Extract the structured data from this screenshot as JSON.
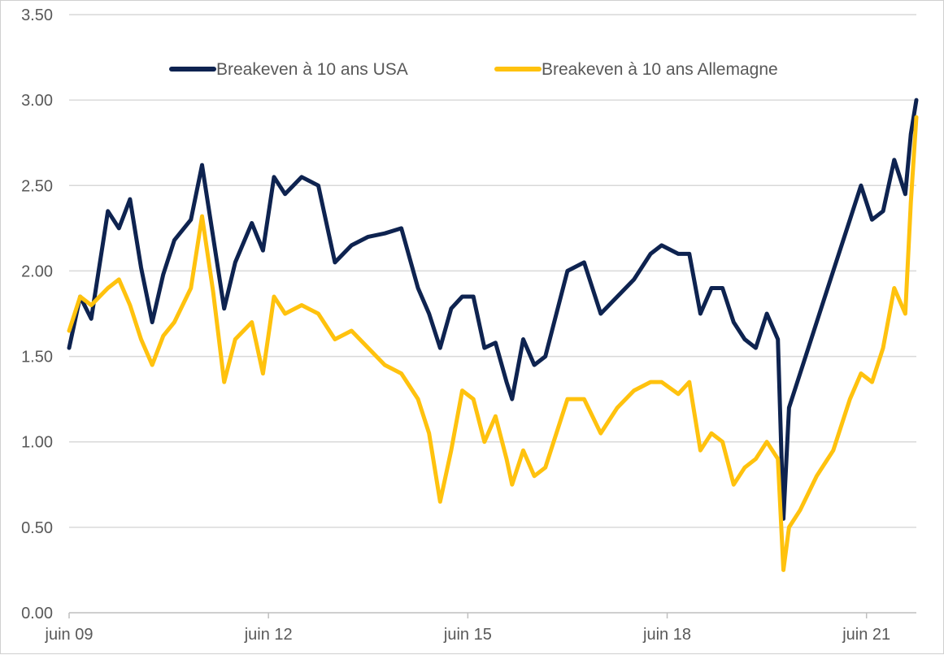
{
  "chart_data": {
    "type": "line",
    "title": "",
    "xlabel": "",
    "ylabel": "",
    "ylim": [
      0,
      3.5
    ],
    "yticks": [
      "0.00",
      "0.50",
      "1.00",
      "1.50",
      "2.00",
      "2.50",
      "3.00",
      "3.50"
    ],
    "xlim": [
      "2009-06",
      "2022-03"
    ],
    "xticks": [
      {
        "label": "juin 09",
        "date": "2009-06"
      },
      {
        "label": "juin 12",
        "date": "2012-06"
      },
      {
        "label": "juin 15",
        "date": "2015-06"
      },
      {
        "label": "juin 18",
        "date": "2018-06"
      },
      {
        "label": "juin 21",
        "date": "2021-06"
      }
    ],
    "grid": true,
    "legend_position": "top",
    "series": [
      {
        "name": "Breakeven à 10 ans USA",
        "color": "#0e2350",
        "points": [
          [
            "2009-06",
            1.55
          ],
          [
            "2009-08",
            1.85
          ],
          [
            "2009-10",
            1.72
          ],
          [
            "2010-01",
            2.35
          ],
          [
            "2010-03",
            2.25
          ],
          [
            "2010-05",
            2.42
          ],
          [
            "2010-07",
            2.02
          ],
          [
            "2010-09",
            1.7
          ],
          [
            "2010-11",
            1.98
          ],
          [
            "2011-01",
            2.18
          ],
          [
            "2011-04",
            2.3
          ],
          [
            "2011-06",
            2.62
          ],
          [
            "2011-08",
            2.2
          ],
          [
            "2011-10",
            1.78
          ],
          [
            "2011-12",
            2.05
          ],
          [
            "2012-03",
            2.28
          ],
          [
            "2012-05",
            2.12
          ],
          [
            "2012-07",
            2.55
          ],
          [
            "2012-09",
            2.45
          ],
          [
            "2012-12",
            2.55
          ],
          [
            "2013-03",
            2.5
          ],
          [
            "2013-06",
            2.05
          ],
          [
            "2013-09",
            2.15
          ],
          [
            "2013-12",
            2.2
          ],
          [
            "2014-03",
            2.22
          ],
          [
            "2014-06",
            2.25
          ],
          [
            "2014-09",
            1.9
          ],
          [
            "2014-11",
            1.75
          ],
          [
            "2015-01",
            1.55
          ],
          [
            "2015-03",
            1.78
          ],
          [
            "2015-05",
            1.85
          ],
          [
            "2015-07",
            1.85
          ],
          [
            "2015-09",
            1.55
          ],
          [
            "2015-11",
            1.58
          ],
          [
            "2016-01",
            1.35
          ],
          [
            "2016-02",
            1.25
          ],
          [
            "2016-04",
            1.6
          ],
          [
            "2016-06",
            1.45
          ],
          [
            "2016-08",
            1.5
          ],
          [
            "2016-10",
            1.75
          ],
          [
            "2016-12",
            2.0
          ],
          [
            "2017-03",
            2.05
          ],
          [
            "2017-06",
            1.75
          ],
          [
            "2017-09",
            1.85
          ],
          [
            "2017-12",
            1.95
          ],
          [
            "2018-03",
            2.1
          ],
          [
            "2018-05",
            2.15
          ],
          [
            "2018-08",
            2.1
          ],
          [
            "2018-10",
            2.1
          ],
          [
            "2018-12",
            1.75
          ],
          [
            "2019-02",
            1.9
          ],
          [
            "2019-04",
            1.9
          ],
          [
            "2019-06",
            1.7
          ],
          [
            "2019-08",
            1.6
          ],
          [
            "2019-10",
            1.55
          ],
          [
            "2019-12",
            1.75
          ],
          [
            "2020-02",
            1.6
          ],
          [
            "2020-03",
            0.55
          ],
          [
            "2020-04",
            1.2
          ],
          [
            "2020-06",
            1.4
          ],
          [
            "2020-09",
            1.7
          ],
          [
            "2020-12",
            2.0
          ],
          [
            "2021-03",
            2.3
          ],
          [
            "2021-05",
            2.5
          ],
          [
            "2021-07",
            2.3
          ],
          [
            "2021-09",
            2.35
          ],
          [
            "2021-11",
            2.65
          ],
          [
            "2022-01",
            2.45
          ],
          [
            "2022-02",
            2.8
          ],
          [
            "2022-03",
            3.0
          ]
        ]
      },
      {
        "name": "Breakeven à 10 ans Allemagne",
        "color": "#ffc20e",
        "points": [
          [
            "2009-06",
            1.65
          ],
          [
            "2009-08",
            1.85
          ],
          [
            "2009-10",
            1.8
          ],
          [
            "2010-01",
            1.9
          ],
          [
            "2010-03",
            1.95
          ],
          [
            "2010-05",
            1.8
          ],
          [
            "2010-07",
            1.6
          ],
          [
            "2010-09",
            1.45
          ],
          [
            "2010-11",
            1.62
          ],
          [
            "2011-01",
            1.7
          ],
          [
            "2011-04",
            1.9
          ],
          [
            "2011-06",
            2.32
          ],
          [
            "2011-08",
            1.88
          ],
          [
            "2011-10",
            1.35
          ],
          [
            "2011-12",
            1.6
          ],
          [
            "2012-03",
            1.7
          ],
          [
            "2012-05",
            1.4
          ],
          [
            "2012-07",
            1.85
          ],
          [
            "2012-09",
            1.75
          ],
          [
            "2012-12",
            1.8
          ],
          [
            "2013-03",
            1.75
          ],
          [
            "2013-06",
            1.6
          ],
          [
            "2013-09",
            1.65
          ],
          [
            "2013-12",
            1.55
          ],
          [
            "2014-03",
            1.45
          ],
          [
            "2014-06",
            1.4
          ],
          [
            "2014-09",
            1.25
          ],
          [
            "2014-11",
            1.05
          ],
          [
            "2015-01",
            0.65
          ],
          [
            "2015-03",
            0.95
          ],
          [
            "2015-05",
            1.3
          ],
          [
            "2015-07",
            1.25
          ],
          [
            "2015-09",
            1.0
          ],
          [
            "2015-11",
            1.15
          ],
          [
            "2016-01",
            0.9
          ],
          [
            "2016-02",
            0.75
          ],
          [
            "2016-04",
            0.95
          ],
          [
            "2016-06",
            0.8
          ],
          [
            "2016-08",
            0.85
          ],
          [
            "2016-10",
            1.05
          ],
          [
            "2016-12",
            1.25
          ],
          [
            "2017-03",
            1.25
          ],
          [
            "2017-06",
            1.05
          ],
          [
            "2017-09",
            1.2
          ],
          [
            "2017-12",
            1.3
          ],
          [
            "2018-03",
            1.35
          ],
          [
            "2018-05",
            1.35
          ],
          [
            "2018-08",
            1.28
          ],
          [
            "2018-10",
            1.35
          ],
          [
            "2018-12",
            0.95
          ],
          [
            "2019-02",
            1.05
          ],
          [
            "2019-04",
            1.0
          ],
          [
            "2019-06",
            0.75
          ],
          [
            "2019-08",
            0.85
          ],
          [
            "2019-10",
            0.9
          ],
          [
            "2019-12",
            1.0
          ],
          [
            "2020-02",
            0.9
          ],
          [
            "2020-03",
            0.25
          ],
          [
            "2020-04",
            0.5
          ],
          [
            "2020-06",
            0.6
          ],
          [
            "2020-09",
            0.8
          ],
          [
            "2020-12",
            0.95
          ],
          [
            "2021-03",
            1.25
          ],
          [
            "2021-05",
            1.4
          ],
          [
            "2021-07",
            1.35
          ],
          [
            "2021-09",
            1.55
          ],
          [
            "2021-11",
            1.9
          ],
          [
            "2022-01",
            1.75
          ],
          [
            "2022-02",
            2.4
          ],
          [
            "2022-03",
            2.9
          ]
        ]
      }
    ]
  }
}
